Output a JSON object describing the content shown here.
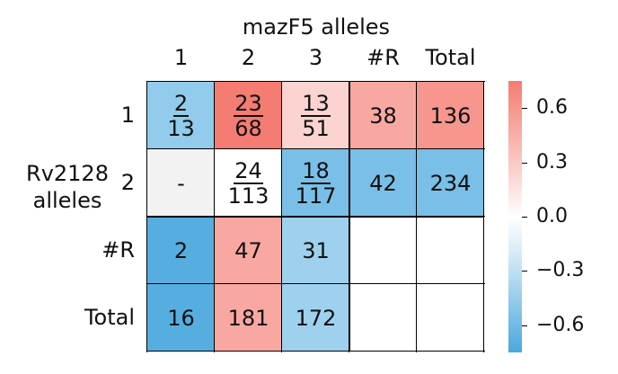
{
  "chart_data": {
    "type": "heatmap",
    "title": "mazF5 alleles",
    "ylabel": "Rv2128\nalleles",
    "columns": [
      "1",
      "2",
      "3",
      "#R",
      "Total"
    ],
    "rows": [
      "1",
      "2",
      "#R",
      "Total"
    ],
    "cells": [
      [
        {
          "label": "2/13",
          "num": "2",
          "den": "13",
          "value": -0.45
        },
        {
          "label": "23/68",
          "num": "23",
          "den": "68",
          "value": 0.75
        },
        {
          "label": "13/51",
          "num": "13",
          "den": "51",
          "value": 0.25
        },
        {
          "label": "38",
          "value": 0.5
        },
        {
          "label": "136",
          "value": 0.6
        }
      ],
      [
        {
          "label": "-",
          "value": null
        },
        {
          "label": "24/113",
          "num": "24",
          "den": "113",
          "value": 0.0
        },
        {
          "label": "18/117",
          "num": "18",
          "den": "117",
          "value": -0.55
        },
        {
          "label": "42",
          "value": -0.55
        },
        {
          "label": "234",
          "value": -0.55
        }
      ],
      [
        {
          "label": "2",
          "value": -0.7
        },
        {
          "label": "47",
          "value": 0.5
        },
        {
          "label": "31",
          "value": -0.4
        },
        {
          "label": "",
          "value": "blank"
        },
        {
          "label": "",
          "value": "blank"
        }
      ],
      [
        {
          "label": "16",
          "value": -0.7
        },
        {
          "label": "181",
          "value": 0.5
        },
        {
          "label": "172",
          "value": -0.4
        },
        {
          "label": "",
          "value": "blank"
        },
        {
          "label": "",
          "value": "blank"
        }
      ]
    ],
    "colorbar": {
      "ticks": [
        "0.6",
        "0.3",
        "0.0",
        "−0.3",
        "−0.6"
      ],
      "tick_values": [
        0.6,
        0.3,
        0.0,
        -0.3,
        -0.6
      ],
      "range": [
        -0.75,
        0.75
      ],
      "colors": {
        "high": "#f47c72",
        "mid": "#ffffff",
        "low": "#4aa8de",
        "missing": "#f2f2f2"
      }
    }
  }
}
